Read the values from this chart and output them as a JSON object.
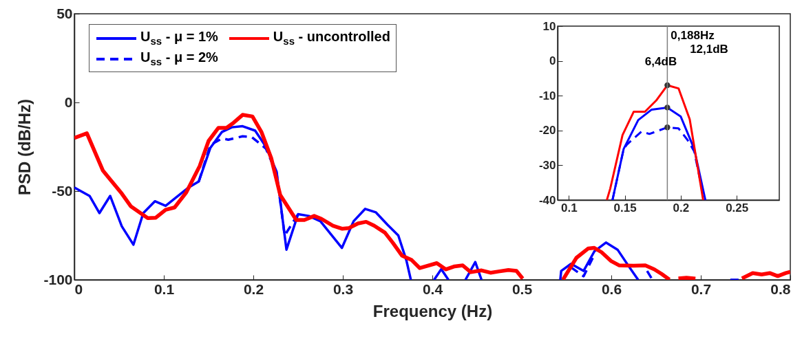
{
  "chart_data": [
    {
      "type": "line",
      "xlabel": "Frequency (Hz)",
      "ylabel": "PSD (dB/Hz)",
      "xlim": [
        0,
        0.8
      ],
      "ylim": [
        -100,
        50
      ],
      "xticks": [
        0,
        0.1,
        0.2,
        0.3,
        0.4,
        0.5,
        0.6,
        0.7,
        0.8
      ],
      "yticks": [
        -100,
        -50,
        0,
        50
      ],
      "grid": false,
      "legend": "top left",
      "series": [
        {
          "name": "U$_{ss}$ - μ = 1%",
          "color": "#0000ff",
          "line_style": "solid",
          "x": [
            0,
            0.017,
            0.028,
            0.04,
            0.053,
            0.066,
            0.077,
            0.09,
            0.102,
            0.114,
            0.127,
            0.139,
            0.152,
            0.165,
            0.176,
            0.188,
            0.202,
            0.214,
            0.226,
            0.237,
            0.25,
            0.262,
            0.275,
            0.299,
            0.312,
            0.325,
            0.337,
            0.35,
            0.362,
            0.371,
            0.376,
            0.385,
            0.402,
            0.41,
            0.418,
            0.425,
            0.437,
            0.448,
            0.455,
            0.5,
            0.543,
            0.544,
            0.555,
            0.569,
            0.581,
            0.594,
            0.607,
            0.619,
            0.63
          ],
          "values": [
            -48,
            -52.7,
            -62.4,
            -52.7,
            -69.8,
            -80.2,
            -62.4,
            -55.7,
            -58.3,
            -53.4,
            -48.2,
            -44.6,
            -25.6,
            -16.6,
            -14,
            -13.4,
            -15.9,
            -24.9,
            -39,
            -83,
            -63,
            -64,
            -67,
            -82,
            -67,
            -60,
            -62,
            -69,
            -75,
            -89,
            -100,
            null,
            -100,
            -94,
            -100,
            null,
            -100,
            -90,
            -100,
            null,
            -100,
            -95,
            -91,
            -95,
            -84,
            -79,
            -83,
            -92,
            -100
          ]
        },
        {
          "name": "U$_{ss}$ - μ = 2%",
          "color": "#0000fe",
          "line_style": "dashed",
          "x": [
            0.139,
            0.152,
            0.165,
            0.172,
            0.188,
            0.198,
            0.206,
            0.214,
            0.226,
            0.235,
            0.25,
            0.4,
            0.555,
            0.569,
            0.581,
            0.6,
            0.64,
            0.646,
            0.7,
            0.733,
            0.745
          ],
          "values": [
            -44.6,
            -24,
            -20.3,
            -21,
            -19.1,
            -19.4,
            -22.7,
            -26,
            -40,
            -75,
            -63,
            null,
            -93,
            -98,
            -86,
            null,
            -95,
            -100,
            null,
            -100,
            -100
          ]
        },
        {
          "name": "U$_{ss}$ - uncontrolled",
          "color": "#ff0000",
          "line_style": "solid",
          "x": [
            0,
            0.014,
            0.032,
            0.053,
            0.063,
            0.082,
            0.091,
            0.102,
            0.112,
            0.125,
            0.14,
            0.15,
            0.161,
            0.17,
            0.178,
            0.188,
            0.199,
            0.209,
            0.22,
            0.23,
            0.248,
            0.257,
            0.268,
            0.276,
            0.289,
            0.299,
            0.307,
            0.317,
            0.326,
            0.335,
            0.347,
            0.356,
            0.366,
            0.377,
            0.386,
            0.405,
            0.415,
            0.425,
            0.434,
            0.443,
            0.455,
            0.465,
            0.474,
            0.485,
            0.494,
            0.501,
            0.52,
            0.546,
            0.561,
            0.574,
            0.581,
            0.589,
            0.6,
            0.609,
            0.625,
            0.638,
            0.648,
            0.656,
            0.665,
            0.67,
            0.675,
            0.684,
            0.694,
            0.72,
            0.746,
            0.758,
            0.768,
            0.777,
            0.786,
            0.795,
            0.8
          ],
          "values": [
            -20,
            -17.4,
            -38.5,
            -51.4,
            -58.5,
            -65.2,
            -65,
            -60.5,
            -59.2,
            -50.8,
            -35.9,
            -21.7,
            -14.3,
            -14.3,
            -11.4,
            -7,
            -7.9,
            -16.6,
            -31.4,
            -52.1,
            -66.3,
            -66.3,
            -64,
            -65.6,
            -69.5,
            -71.2,
            -70.8,
            -68.2,
            -67.3,
            -69.5,
            -73.4,
            -79.2,
            -86.3,
            -88.9,
            -93.4,
            -90.6,
            -94.1,
            -92.4,
            -91.9,
            -95.7,
            -94.7,
            -96,
            -95.3,
            -94.5,
            -95,
            -99.3,
            null,
            -99.9,
            -87.6,
            -82.4,
            -82,
            -84.4,
            -89.5,
            -91.9,
            -92.1,
            -91.9,
            -94.1,
            -96.6,
            -99.9,
            null,
            -99.2,
            -98.8,
            -99.3,
            null,
            -99.2,
            -96.2,
            -97,
            -96.2,
            -97.9,
            -96.2,
            -95.5
          ]
        }
      ]
    },
    {
      "type": "line",
      "xlim": [
        0.09,
        0.288
      ],
      "ylim": [
        -40,
        10
      ],
      "xticks": [
        0.1,
        0.15,
        0.2,
        0.25
      ],
      "yticks": [
        -40,
        -30,
        -20,
        -10,
        0,
        10
      ],
      "grid": false,
      "series": [
        {
          "color": "#0000ff",
          "line_style": "solid",
          "x": [
            0.139,
            0.149,
            0.162,
            0.174,
            0.188,
            0.2,
            0.212,
            0.222
          ],
          "values": [
            -40,
            -25.3,
            -17,
            -14,
            -13.4,
            -16,
            -25.3,
            -40
          ]
        },
        {
          "color": "#0000fe",
          "line_style": "dashed",
          "x": [
            0.139,
            0.149,
            0.152,
            0.165,
            0.172,
            0.188,
            0.198,
            0.206,
            0.212,
            0.221
          ],
          "values": [
            -40,
            -25.3,
            -24,
            -20.3,
            -21,
            -19.1,
            -19.4,
            -22.7,
            -26,
            -40
          ]
        },
        {
          "color": "#ff0000",
          "line_style": "solid",
          "x": [
            0.134,
            0.137,
            0.148,
            0.158,
            0.168,
            0.178,
            0.188,
            0.198,
            0.208,
            0.22
          ],
          "values": [
            -40,
            -36.7,
            -21.3,
            -14.6,
            -14.6,
            -11.4,
            -7,
            -7.9,
            -16.8,
            -40
          ]
        },
        {
          "type": "scatter",
          "marker": "circle",
          "color": "#333333",
          "x": [
            0.188,
            0.188,
            0.188
          ],
          "values": [
            -7,
            -13.4,
            -19.1
          ]
        }
      ],
      "ref_lines": [
        {
          "axis": "x",
          "value": 0.188,
          "label": "0,188Hz",
          "color": "#7f7f7f"
        }
      ],
      "annotations": [
        "6,4dB",
        "12,1dB"
      ]
    }
  ]
}
